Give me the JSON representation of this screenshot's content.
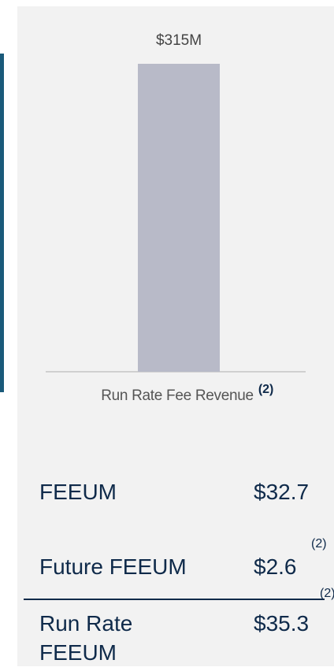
{
  "chart_data": {
    "type": "bar",
    "categories": [
      "Run Rate Fee Revenue"
    ],
    "category_notes": [
      "(2)"
    ],
    "values": [
      315
    ],
    "value_labels": [
      "$315M"
    ],
    "color": "#b8bac8"
  },
  "table": {
    "rows": [
      {
        "label": "FEEUM",
        "value": "$32.7"
      },
      {
        "label": "Future FEEUM",
        "value": "$2.6",
        "note": "(2)"
      },
      {
        "label": "Run Rate FEEUM",
        "value": "$35.3",
        "note": "(2)"
      }
    ]
  }
}
